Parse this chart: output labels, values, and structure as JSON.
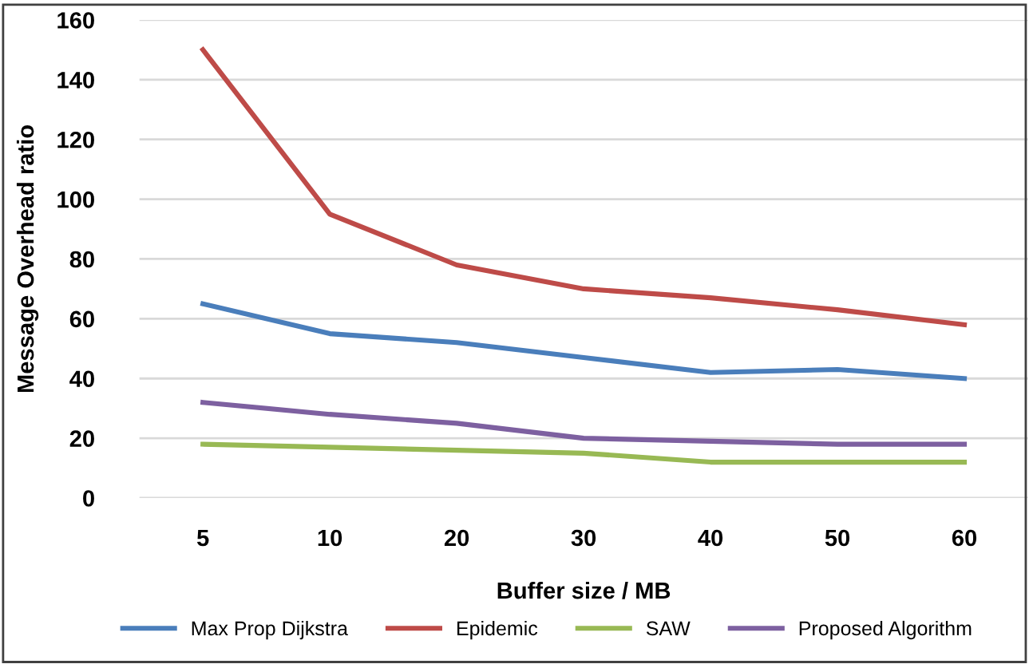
{
  "chart_data": {
    "type": "line",
    "xlabel": "Buffer size / MB",
    "ylabel": "Message Overhead ratio",
    "categories": [
      "5",
      "10",
      "20",
      "30",
      "40",
      "50",
      "60"
    ],
    "series": [
      {
        "name": "Max Prop Dijkstra",
        "color": "#4a7ebb",
        "values": [
          65,
          55,
          52,
          47,
          42,
          43,
          40
        ]
      },
      {
        "name": "Epidemic",
        "color": "#be4b48",
        "values": [
          150,
          95,
          78,
          70,
          67,
          63,
          58
        ]
      },
      {
        "name": "SAW",
        "color": "#98b954",
        "values": [
          18,
          17,
          16,
          15,
          12,
          12,
          12
        ]
      },
      {
        "name": "Proposed Algorithm",
        "color": "#7d60a0",
        "values": [
          32,
          28,
          25,
          20,
          19,
          18,
          18
        ]
      }
    ],
    "ylim": [
      0,
      160
    ],
    "yticks": [
      0,
      20,
      40,
      60,
      80,
      100,
      120,
      140,
      160
    ],
    "grid": "y",
    "legend": "bottom"
  }
}
